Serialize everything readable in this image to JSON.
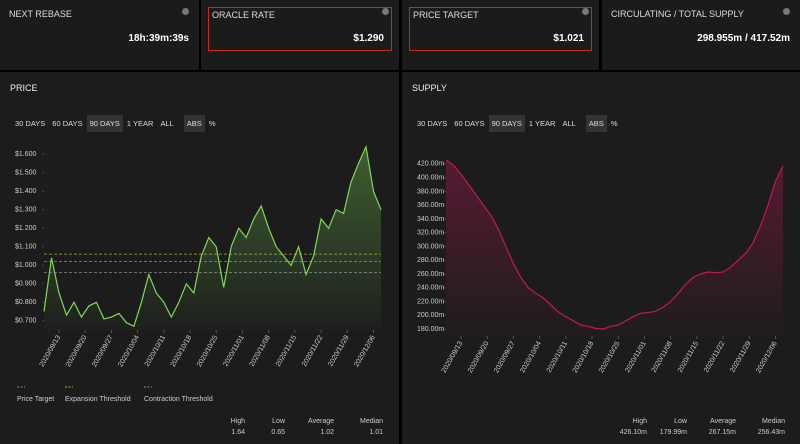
{
  "cards": [
    {
      "label": "NEXT REBASE",
      "value": "18h:39m:39s",
      "highlight": false
    },
    {
      "label": "ORACLE RATE",
      "value": "$1.290",
      "highlight": true
    },
    {
      "label": "PRICE TARGET",
      "value": "$1.021",
      "highlight": true
    },
    {
      "label": "CIRCULATING / TOTAL SUPPLY",
      "value": "298.955m / 417.52m",
      "highlight": false
    }
  ],
  "chart_data": [
    {
      "type": "line",
      "title": "PRICE",
      "buttons": [
        {
          "label": "30 DAYS",
          "active": false
        },
        {
          "label": "60 DAYS",
          "active": false
        },
        {
          "label": "90 DAYS",
          "active": true
        },
        {
          "label": "1 YEAR",
          "active": false
        },
        {
          "label": "ALL",
          "active": false
        },
        {
          "label": "ABS",
          "active": true
        },
        {
          "label": "%",
          "active": false
        }
      ],
      "x": [
        "2020/09/09",
        "2020/09/11",
        "2020/09/13",
        "2020/09/15",
        "2020/09/17",
        "2020/09/19",
        "2020/09/21",
        "2020/09/23",
        "2020/09/25",
        "2020/09/27",
        "2020/09/29",
        "2020/10/01",
        "2020/10/03",
        "2020/10/05",
        "2020/10/07",
        "2020/10/09",
        "2020/10/11",
        "2020/10/13",
        "2020/10/15",
        "2020/10/17",
        "2020/10/19",
        "2020/10/21",
        "2020/10/23",
        "2020/10/25",
        "2020/10/27",
        "2020/10/29",
        "2020/10/31",
        "2020/11/02",
        "2020/11/04",
        "2020/11/06",
        "2020/11/08",
        "2020/11/10",
        "2020/11/12",
        "2020/11/14",
        "2020/11/16",
        "2020/11/18",
        "2020/11/20",
        "2020/11/22",
        "2020/11/24",
        "2020/11/26",
        "2020/11/28",
        "2020/11/30",
        "2020/12/02",
        "2020/12/04",
        "2020/12/06",
        "2020/12/08"
      ],
      "values": [
        0.75,
        1.04,
        0.85,
        0.73,
        0.8,
        0.72,
        0.78,
        0.8,
        0.71,
        0.72,
        0.74,
        0.69,
        0.67,
        0.8,
        0.95,
        0.85,
        0.8,
        0.72,
        0.8,
        0.9,
        0.85,
        1.05,
        1.15,
        1.1,
        0.88,
        1.1,
        1.2,
        1.15,
        1.25,
        1.32,
        1.2,
        1.1,
        1.05,
        1.0,
        1.1,
        0.95,
        1.05,
        1.25,
        1.2,
        1.3,
        1.28,
        1.45,
        1.55,
        1.64,
        1.4,
        1.3
      ],
      "color": "#7ed957",
      "xlim": [
        "2020/09/09",
        "2020/12/08"
      ],
      "xticks": [
        "2020/09/13",
        "2020/09/20",
        "2020/09/27",
        "2020/10/04",
        "2020/10/11",
        "2020/10/18",
        "2020/10/25",
        "2020/11/01",
        "2020/11/08",
        "2020/11/15",
        "2020/11/22",
        "2020/11/29",
        "2020/12/06"
      ],
      "ylim": [
        0.65,
        1.65
      ],
      "yticks": [
        {
          "value": 0.7,
          "label": "$0.700"
        },
        {
          "value": 0.8,
          "label": "$0.800"
        },
        {
          "value": 0.9,
          "label": "$0.900"
        },
        {
          "value": 1.0,
          "label": "$1.000"
        },
        {
          "value": 1.1,
          "label": "$1.100"
        },
        {
          "value": 1.2,
          "label": "$1.200"
        },
        {
          "value": 1.3,
          "label": "$1.300"
        },
        {
          "value": 1.4,
          "label": "$1.400"
        },
        {
          "value": 1.5,
          "label": "$1.500"
        },
        {
          "value": 1.6,
          "label": "$1.600"
        }
      ],
      "reference_lines": [
        {
          "name": "Price Target",
          "value": 1.021,
          "color": "#8a8a8a"
        },
        {
          "name": "Expansion Threshold",
          "value": 1.06,
          "color": "#b5a642"
        },
        {
          "name": "Contraction Threshold",
          "value": 0.96,
          "color": "#8a8a8a"
        }
      ],
      "stats": [
        {
          "label": "High",
          "value": "1.64"
        },
        {
          "label": "Low",
          "value": "0.65"
        },
        {
          "label": "Average",
          "value": "1.02"
        },
        {
          "label": "Median",
          "value": "1.01"
        }
      ]
    },
    {
      "type": "line",
      "title": "SUPPLY",
      "buttons": [
        {
          "label": "30 DAYS",
          "active": false
        },
        {
          "label": "60 DAYS",
          "active": false
        },
        {
          "label": "90 DAYS",
          "active": true
        },
        {
          "label": "1 YEAR",
          "active": false
        },
        {
          "label": "ALL",
          "active": false
        },
        {
          "label": "ABS",
          "active": true
        },
        {
          "label": "%",
          "active": false
        }
      ],
      "x": [
        "2020/09/09",
        "2020/09/11",
        "2020/09/13",
        "2020/09/15",
        "2020/09/17",
        "2020/09/19",
        "2020/09/21",
        "2020/09/23",
        "2020/09/25",
        "2020/09/27",
        "2020/09/29",
        "2020/10/01",
        "2020/10/03",
        "2020/10/05",
        "2020/10/07",
        "2020/10/09",
        "2020/10/11",
        "2020/10/13",
        "2020/10/15",
        "2020/10/17",
        "2020/10/19",
        "2020/10/21",
        "2020/10/23",
        "2020/10/25",
        "2020/10/27",
        "2020/10/29",
        "2020/10/31",
        "2020/11/02",
        "2020/11/04",
        "2020/11/06",
        "2020/11/08",
        "2020/11/10",
        "2020/11/12",
        "2020/11/14",
        "2020/11/16",
        "2020/11/18",
        "2020/11/20",
        "2020/11/22",
        "2020/11/24",
        "2020/11/26",
        "2020/11/28",
        "2020/11/30",
        "2020/12/02",
        "2020/12/04",
        "2020/12/06",
        "2020/12/08"
      ],
      "values": [
        426,
        418,
        405,
        390,
        375,
        360,
        345,
        325,
        300,
        275,
        255,
        240,
        232,
        225,
        215,
        205,
        198,
        192,
        186,
        184,
        181,
        180,
        184,
        186,
        192,
        198,
        203,
        204,
        206,
        212,
        220,
        232,
        245,
        255,
        260,
        263,
        262,
        263,
        270,
        280,
        290,
        305,
        330,
        360,
        395,
        417
      ],
      "color": "#c2185b",
      "xlim": [
        "2020/09/09",
        "2020/12/08"
      ],
      "xticks": [
        "2020/09/13",
        "2020/09/20",
        "2020/09/27",
        "2020/10/04",
        "2020/10/11",
        "2020/10/18",
        "2020/10/25",
        "2020/11/01",
        "2020/11/08",
        "2020/11/15",
        "2020/11/22",
        "2020/11/29",
        "2020/12/06"
      ],
      "ylim": [
        170,
        430
      ],
      "yticks": [
        {
          "value": 180,
          "label": "180.00m"
        },
        {
          "value": 200,
          "label": "200.00m"
        },
        {
          "value": 220,
          "label": "220.00m"
        },
        {
          "value": 240,
          "label": "240.00m"
        },
        {
          "value": 260,
          "label": "260.00m"
        },
        {
          "value": 280,
          "label": "280.00m"
        },
        {
          "value": 300,
          "label": "300.00m"
        },
        {
          "value": 320,
          "label": "320.00m"
        },
        {
          "value": 340,
          "label": "340.00m"
        },
        {
          "value": 360,
          "label": "360.00m"
        },
        {
          "value": 380,
          "label": "380.00m"
        },
        {
          "value": 400,
          "label": "400.00m"
        },
        {
          "value": 420,
          "label": "420.00m"
        }
      ],
      "stats": [
        {
          "label": "High",
          "value": "426.10m"
        },
        {
          "label": "Low",
          "value": "179.99m"
        },
        {
          "label": "Average",
          "value": "267.15m"
        },
        {
          "label": "Median",
          "value": "256.43m"
        }
      ]
    }
  ]
}
